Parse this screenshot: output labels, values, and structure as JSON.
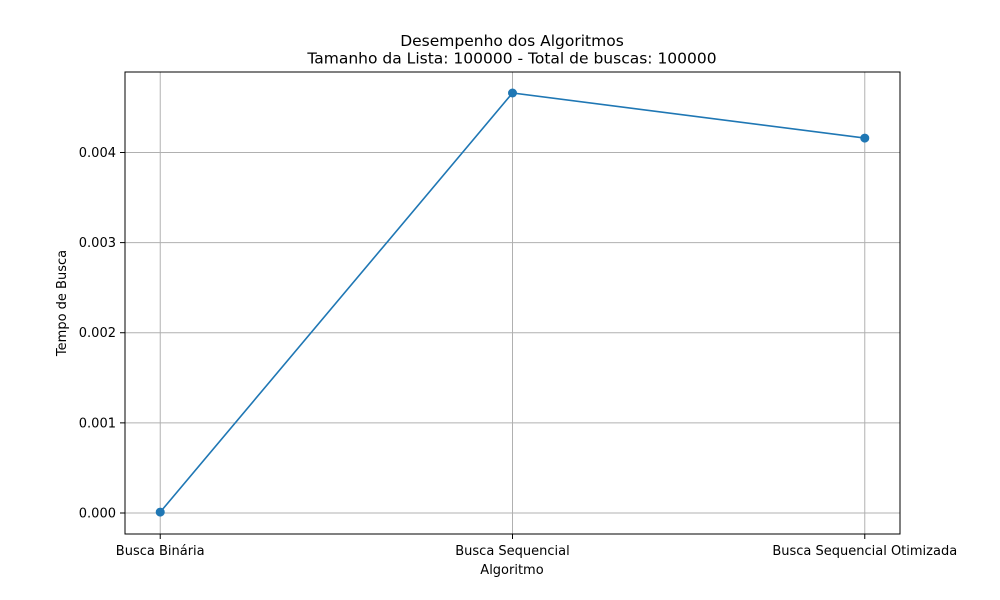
{
  "chart_data": {
    "type": "line",
    "title": "Desempenho dos Algoritmos",
    "subtitle": "Tamanho da Lista: 100000 - Total de buscas: 100000",
    "xlabel": "Algoritmo",
    "ylabel": "Tempo de Busca",
    "categories": [
      "Busca Binária",
      "Busca Sequencial",
      "Busca Sequencial Otimizada"
    ],
    "series": [
      {
        "values": [
          1e-05,
          0.00466,
          0.00416
        ]
      }
    ],
    "yticks": [
      0.0,
      0.001,
      0.002,
      0.003,
      0.004
    ],
    "ytick_labels": [
      "0.000",
      "0.001",
      "0.002",
      "0.003",
      "0.004"
    ],
    "ylim": [
      -0.000233,
      0.004893
    ],
    "grid": true,
    "legend": "none",
    "colors": {
      "line": "#1f77b4",
      "grid": "#b0b0b0",
      "axis": "#000000"
    },
    "marker": "circle"
  }
}
